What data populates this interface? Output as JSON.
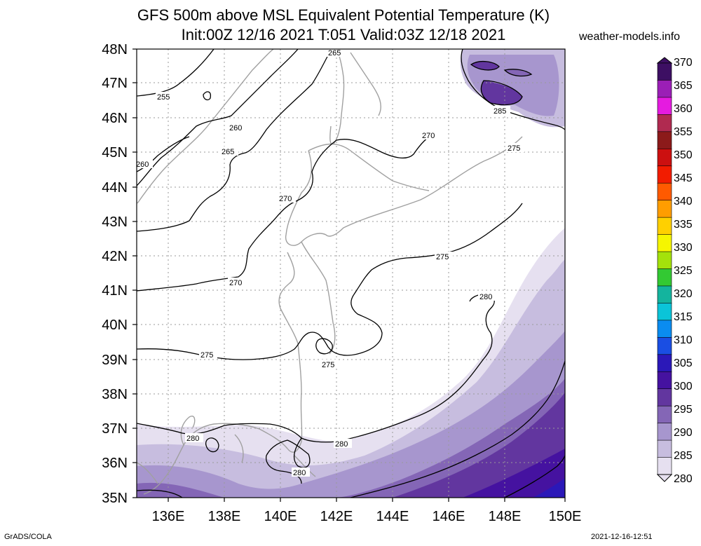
{
  "title_line1": "GFS 500m above MSL Equivalent Potential Temperature (K)",
  "title_line2": "Init:00Z 12/16 2021 T:051 Valid:03Z 12/18 2021",
  "site": "weather-models.info",
  "footer_left": "GrADS/COLA",
  "footer_right": "2021-12-16-12:51",
  "lat_labels": [
    "48N",
    "47N",
    "46N",
    "45N",
    "44N",
    "43N",
    "42N",
    "41N",
    "40N",
    "39N",
    "38N",
    "37N",
    "36N",
    "35N"
  ],
  "lon_labels": [
    "136E",
    "138E",
    "140E",
    "142E",
    "144E",
    "146E",
    "148E",
    "150E"
  ],
  "colorbar": {
    "labels": [
      "370",
      "365",
      "360",
      "355",
      "350",
      "345",
      "340",
      "335",
      "330",
      "325",
      "320",
      "315",
      "310",
      "305",
      "300",
      "295",
      "290",
      "285",
      "280"
    ],
    "colors": [
      "#3d0f63",
      "#9b1fb6",
      "#e51be0",
      "#b02a50",
      "#8c1a1a",
      "#cc1010",
      "#f21c00",
      "#ff5a00",
      "#ff9d00",
      "#ffd000",
      "#f6f600",
      "#a4e20b",
      "#33c933",
      "#14b49e",
      "#0bc4d8",
      "#0a8cf0",
      "#1a4ee3",
      "#2b18b8",
      "#4512a0",
      "#62369f",
      "#8466b6",
      "#a796ce",
      "#c7bddf",
      "#e6e0f0"
    ]
  },
  "contour_labels": [
    {
      "text": "265"
    },
    {
      "text": "255"
    },
    {
      "text": "260"
    },
    {
      "text": "265"
    },
    {
      "text": "260"
    },
    {
      "text": "270"
    },
    {
      "text": "270"
    },
    {
      "text": "270"
    },
    {
      "text": "275"
    },
    {
      "text": "275"
    },
    {
      "text": "275"
    },
    {
      "text": "275"
    },
    {
      "text": "280"
    },
    {
      "text": "280"
    },
    {
      "text": "280"
    },
    {
      "text": "280"
    },
    {
      "text": "285"
    }
  ]
}
